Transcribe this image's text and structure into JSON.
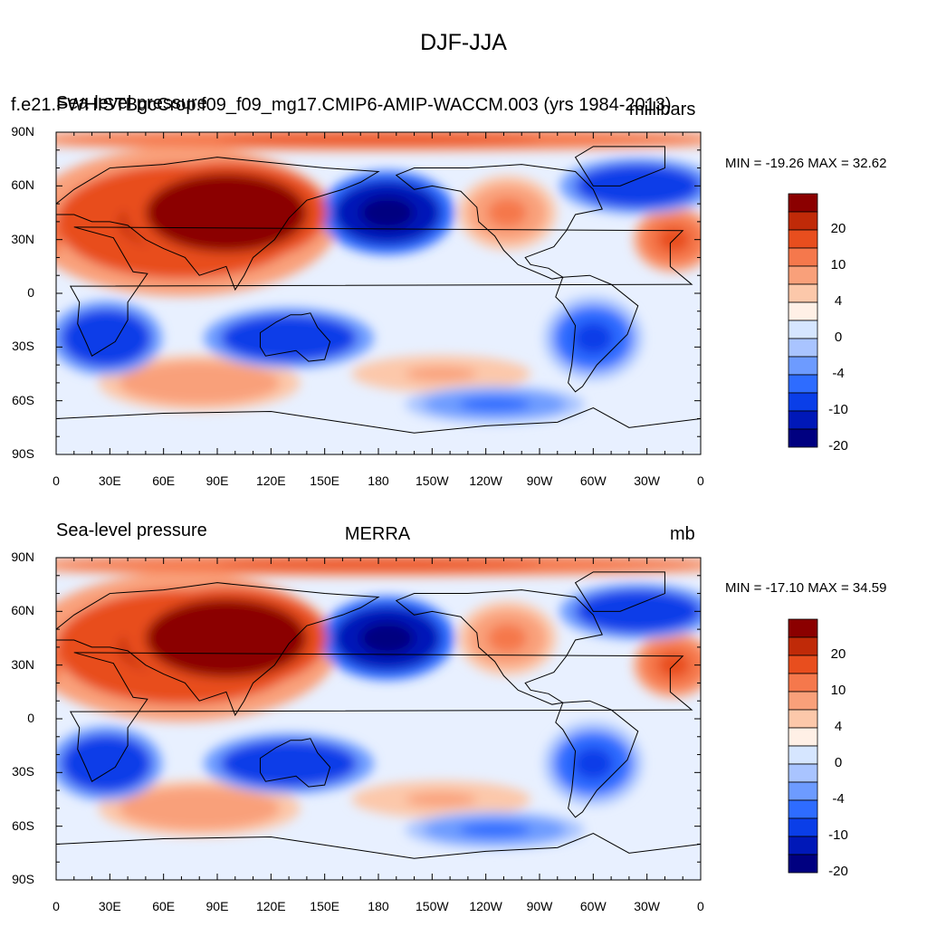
{
  "figure": {
    "title": "DJF-JJA",
    "x_tick_labels": [
      "0",
      "30E",
      "60E",
      "90E",
      "120E",
      "150E",
      "180",
      "150W",
      "120W",
      "90W",
      "60W",
      "30W",
      "0"
    ],
    "y_tick_labels": [
      "90N",
      "60N",
      "30N",
      "0",
      "30S",
      "60S",
      "90S"
    ]
  },
  "panels": [
    {
      "id": "model",
      "left_title_overlay": "Sea-level pressure",
      "center_title": "f.e21.FWHISTBgcCrop.f09_f09_mg17.CMIP6-AMIP-WACCM.003 (yrs 1984-2013)",
      "right_title": "millibars",
      "minmax": "MIN = -19.26 MAX =  32.62",
      "colorbar_labels": [
        "20",
        "10",
        "4",
        "0",
        "-4",
        "-10",
        "-20"
      ]
    },
    {
      "id": "obs",
      "left_title": "Sea-level pressure",
      "center_title": "MERRA",
      "right_title": "mb",
      "minmax": "MIN = -17.10 MAX =  34.59",
      "colorbar_labels": [
        "20",
        "10",
        "4",
        "0",
        "-4",
        "-10",
        "-20"
      ]
    }
  ],
  "chart_data": {
    "type": "heatmap",
    "variable": "Sea-level pressure",
    "season_difference": "DJF-JJA",
    "colorbar_levels": [
      -20,
      -10,
      -4,
      0,
      4,
      10,
      20
    ],
    "colorbar_colors": [
      "#000080",
      "#0018b8",
      "#0a3ee8",
      "#2e6cff",
      "#6d9bff",
      "#a9c4ff",
      "#d6e6ff",
      "#fff0e6",
      "#fcc8aa",
      "#f9a07a",
      "#f5784c",
      "#e84e1e",
      "#c02a08",
      "#8b0000"
    ],
    "panels": [
      {
        "title": "f.e21.FWHISTBgcCrop.f09_f09_mg17.CMIP6-AMIP-WACCM.003 (yrs 1984-2013)",
        "units": "millibars",
        "min": -19.26,
        "max": 32.62
      },
      {
        "title": "MERRA",
        "units": "mb",
        "min": -17.1,
        "max": 34.59
      }
    ],
    "features": [
      {
        "name": "Siberian high",
        "lon": 95,
        "lat": 45,
        "rx": 45,
        "ry": 22,
        "value": 26
      },
      {
        "name": "Eurasia warm",
        "lon": 70,
        "lat": 40,
        "rx": 70,
        "ry": 32,
        "value": 13
      },
      {
        "name": "Arctic strip",
        "lon": 180,
        "lat": 86,
        "rx": 180,
        "ry": 5,
        "value": 10
      },
      {
        "name": "Aleutian low",
        "lon": 185,
        "lat": 45,
        "rx": 30,
        "ry": 18,
        "value": -17
      },
      {
        "name": "Icelandic low",
        "lon": 325,
        "lat": 60,
        "rx": 35,
        "ry": 12,
        "value": -10
      },
      {
        "name": "North America high",
        "lon": 252,
        "lat": 45,
        "rx": 22,
        "ry": 16,
        "value": 6
      },
      {
        "name": "N Africa high",
        "lon": 345,
        "lat": 30,
        "rx": 18,
        "ry": 14,
        "value": 9
      },
      {
        "name": "Southern Africa low",
        "lon": 28,
        "lat": -25,
        "rx": 25,
        "ry": 16,
        "value": -10
      },
      {
        "name": "Australia low",
        "lon": 130,
        "lat": -25,
        "rx": 38,
        "ry": 13,
        "value": -10
      },
      {
        "name": "South America low",
        "lon": 300,
        "lat": -25,
        "rx": 22,
        "ry": 18,
        "value": -8
      },
      {
        "name": "Indian Ocean high",
        "lon": 80,
        "lat": -50,
        "rx": 45,
        "ry": 12,
        "value": 5
      },
      {
        "name": "South Pacific high",
        "lon": 215,
        "lat": -45,
        "rx": 40,
        "ry": 8,
        "value": 3
      },
      {
        "name": "Southern Ocean low",
        "lon": 245,
        "lat": -62,
        "rx": 40,
        "ry": 8,
        "value": -6
      }
    ]
  }
}
